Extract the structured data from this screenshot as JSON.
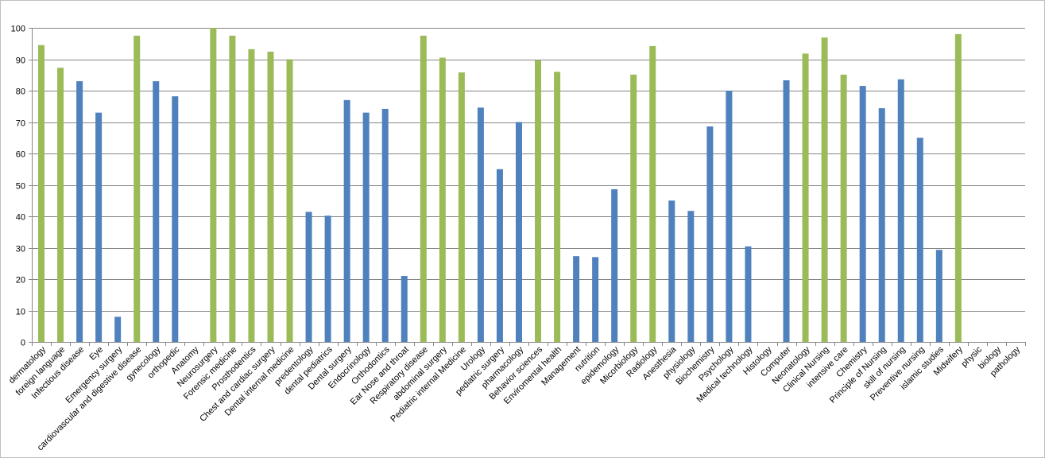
{
  "chart_data": {
    "type": "bar",
    "title": "",
    "xlabel": "",
    "ylabel": "",
    "ylim": [
      0,
      100
    ],
    "y_ticks": [
      0,
      10,
      20,
      30,
      40,
      50,
      60,
      70,
      80,
      90,
      100
    ],
    "grid": true,
    "legend": "none",
    "colors": {
      "green": "#9BBB59",
      "blue": "#4F81BD",
      "grid": "#868686",
      "axis": "#868686"
    },
    "categories": [
      "dermatology",
      "foreign language",
      "Infectious disease",
      "Eye",
      "Emergency surgery",
      "cardiovascular and digestive disease",
      "gynecology",
      "orthopedic",
      "Anatomy",
      "Neurosurgery",
      "Forensic medicine",
      "Prosthodentics",
      "Chest and cardiac surgery",
      "Dental internal medicine",
      "predentology",
      "dental pediatrics",
      "Dental surgery",
      "Endocrinology",
      "Orthodontics",
      "Ear Nose and throat",
      "Respiratory disease",
      "abdominal surgery",
      "Pediatric internal Medicine",
      "Urology",
      "pediatric surgery",
      "pharmacology",
      "Behavior sciences",
      "Enviromental health",
      "Management",
      "nutrition",
      "epidemology",
      "Micorbiology",
      "Radiology",
      "Anesthesia",
      "physiology",
      "Biochemistry",
      "Psychology",
      "Medical technology",
      "Histology",
      "Computer",
      "Neonatology",
      "Clinical Nursing",
      "intensive care",
      "Chemistry",
      "Principle of Nursing",
      "skill of nursing",
      "Preventive nursing",
      "islamic studies",
      "Midwifery",
      "physic",
      "biology",
      "pathology"
    ],
    "values": [
      94.5,
      87.3,
      83,
      73,
      8,
      97.5,
      83,
      78.2,
      null,
      100,
      97.5,
      93.2,
      92.4,
      90,
      41.4,
      40.2,
      77,
      73,
      74.2,
      21,
      97.5,
      90.5,
      85.8,
      74.6,
      55,
      70,
      89.6,
      86,
      27.3,
      27,
      48.6,
      85.1,
      94.2,
      45,
      41.7,
      68.6,
      80,
      30.4,
      null,
      83.3,
      91.8,
      96.9,
      85.1,
      81.5,
      74.4,
      83.6,
      65,
      29.3,
      98,
      null,
      null,
      null
    ],
    "bar_colors": [
      "green",
      "green",
      "blue",
      "blue",
      "blue",
      "green",
      "blue",
      "blue",
      "blue",
      "green",
      "green",
      "green",
      "green",
      "green",
      "blue",
      "blue",
      "blue",
      "blue",
      "blue",
      "blue",
      "green",
      "green",
      "green",
      "blue",
      "blue",
      "blue",
      "green",
      "green",
      "blue",
      "blue",
      "blue",
      "green",
      "green",
      "blue",
      "blue",
      "blue",
      "blue",
      "blue",
      "blue",
      "blue",
      "green",
      "green",
      "green",
      "blue",
      "blue",
      "blue",
      "blue",
      "blue",
      "green",
      "blue",
      "blue",
      "blue"
    ]
  }
}
